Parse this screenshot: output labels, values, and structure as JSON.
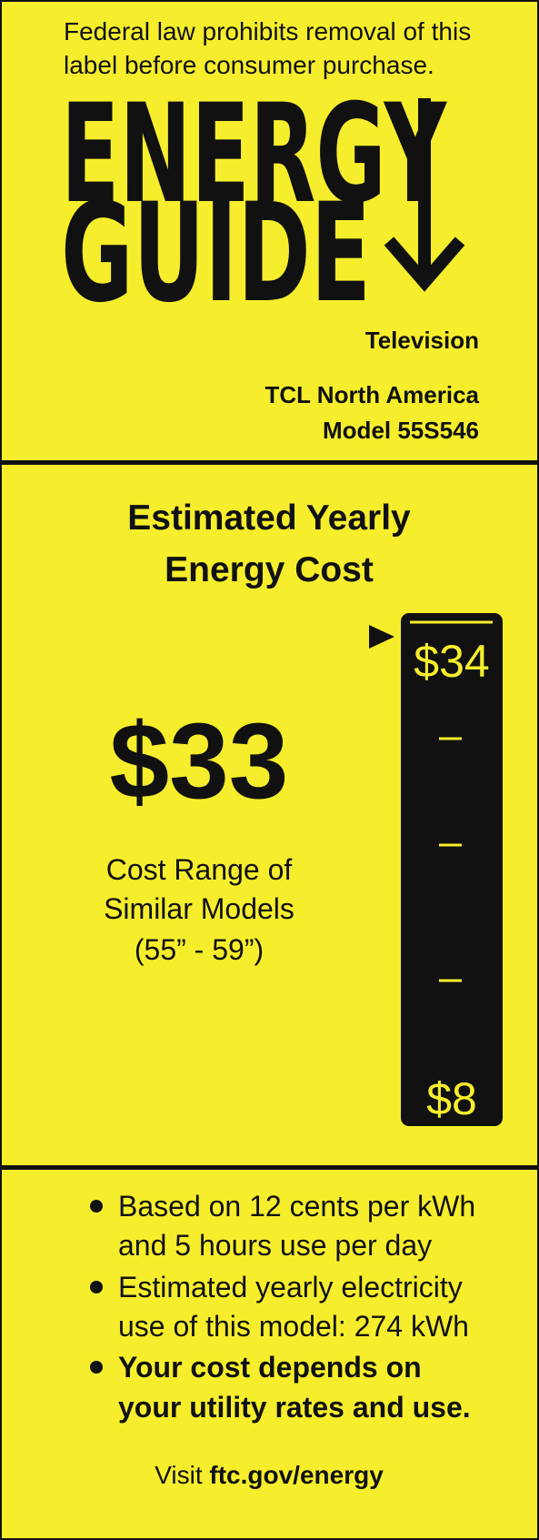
{
  "header": {
    "notice": [
      "Federal law prohibits removal of this",
      "label before consumer purchase."
    ],
    "title": [
      "ENERGY",
      "GUIDE"
    ],
    "product": "Television",
    "manufacturer": "TCL North America",
    "model": "Model 55S546"
  },
  "cost": {
    "heading": [
      "Estimated Yearly",
      "Energy Cost"
    ],
    "amount": "$33",
    "range_label": [
      "Cost Range of",
      "Similar Models",
      "(55” - 59”)"
    ],
    "range_high": "$34",
    "range_low": "$8"
  },
  "notes": [
    [
      "Based on 12 cents per kWh",
      "and 5 hours use per day"
    ],
    [
      "Estimated yearly electricity",
      "use of this model: 274 kWh"
    ],
    [
      "Your cost depends on",
      "your utility rates and use."
    ]
  ],
  "footer": {
    "prefix": "Visit",
    "link": "ftc.gov/energy"
  }
}
